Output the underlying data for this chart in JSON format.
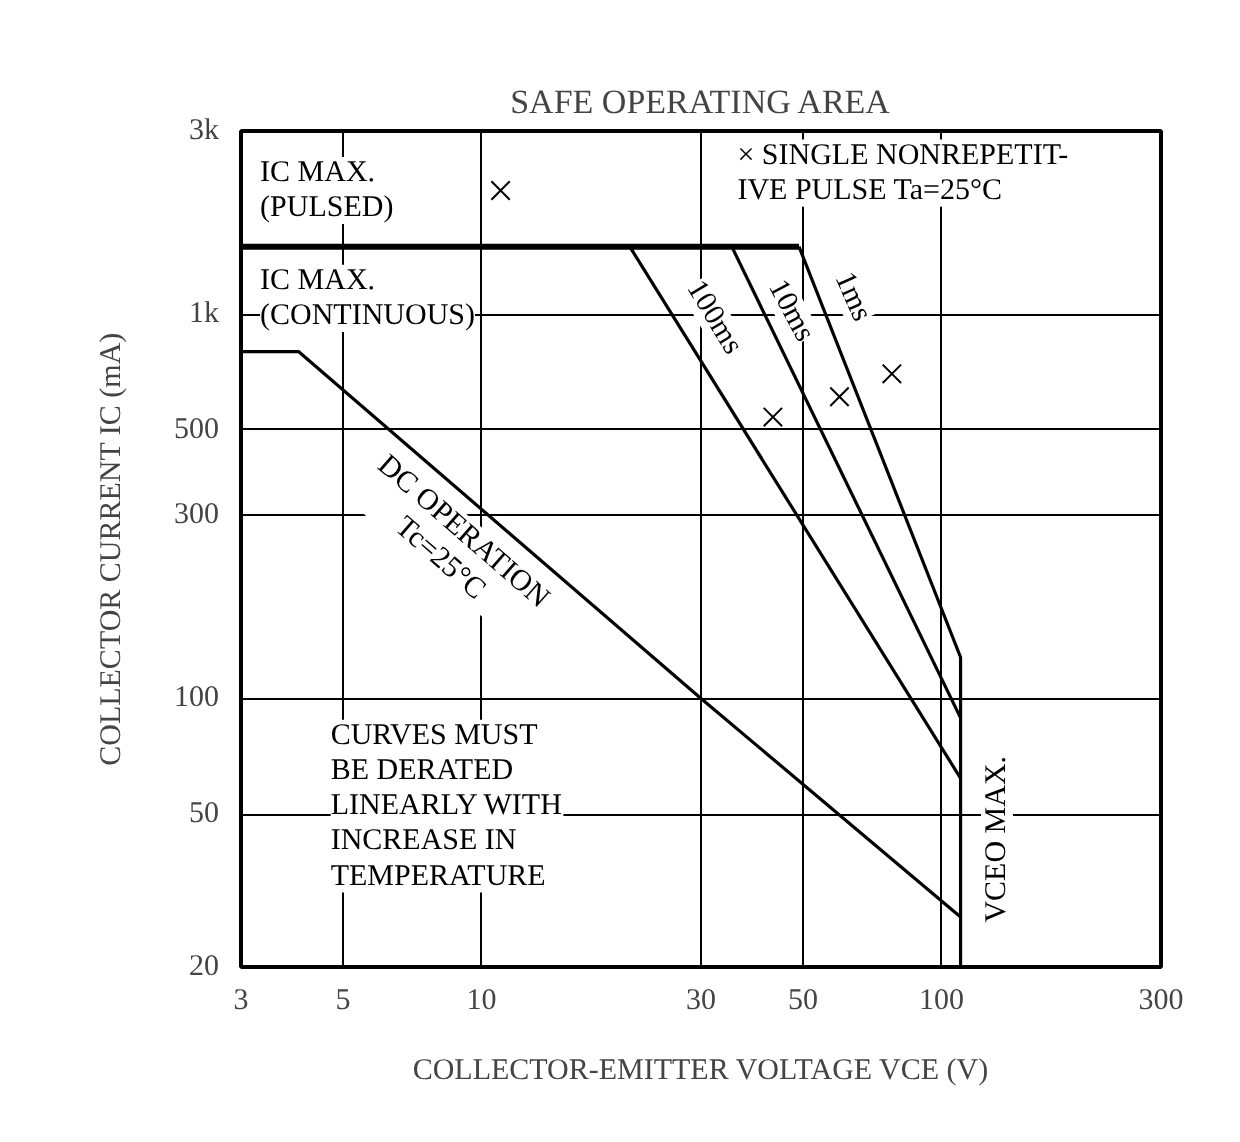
{
  "chart_data": {
    "type": "line",
    "title": "SAFE OPERATING AREA",
    "xlabel": "COLLECTOR-EMITTER VOLTAGE VCE (V)",
    "ylabel": "COLLECTOR CURRENT IC (mA)",
    "log": "xy",
    "xlim": [
      3,
      300
    ],
    "ylim": [
      20,
      3000
    ],
    "xticks": [
      3,
      5,
      10,
      30,
      50,
      100,
      300
    ],
    "yticks": [
      20,
      50,
      100,
      300,
      500,
      {
        "value": 1000,
        "label": "1k"
      },
      {
        "value": 3000,
        "label": "3k"
      }
    ],
    "grid": true,
    "line_style": "solid",
    "series": [
      {
        "color": "#000000",
        "x": [
          3,
          49
        ],
        "values": [
          1500,
          1500
        ]
      },
      {
        "color": "#000000",
        "x": [
          3,
          4,
          30,
          110
        ],
        "values": [
          800,
          800,
          100,
          27
        ]
      },
      {
        "color": "#000000",
        "x": [
          21,
          110
        ],
        "values": [
          1500,
          62
        ]
      },
      {
        "color": "#000000",
        "x": [
          35,
          110
        ],
        "values": [
          1500,
          89
        ]
      },
      {
        "color": "#000000",
        "x": [
          49,
          110,
          110
        ],
        "values": [
          1500,
          128,
          20
        ]
      },
      {
        "type": "scatter",
        "marker": "cross",
        "color": "#000000",
        "x": [
          11,
          43,
          60,
          78
        ],
        "values": [
          2100,
          540,
          610,
          700
        ]
      }
    ],
    "annotations": [
      "IC MAX.\n(PULSED)",
      "IC MAX.\n(CONTINUOUS)",
      "× SINGLE NONREPETIT-\nIVE PULSE Ta=25°C",
      {
        "text": "100ms",
        "x": 32,
        "y": 980
      },
      {
        "text": "10ms",
        "x": 47,
        "y": 1020
      },
      {
        "text": "1ms",
        "x": 64,
        "y": 1110
      },
      "DC OPERATION\nTc=25°C",
      "CURVES MUST\nBE DERATED\nLINEARLY WITH\nINCREASE IN\nTEMPERATURE",
      "VCEO MAX."
    ]
  }
}
